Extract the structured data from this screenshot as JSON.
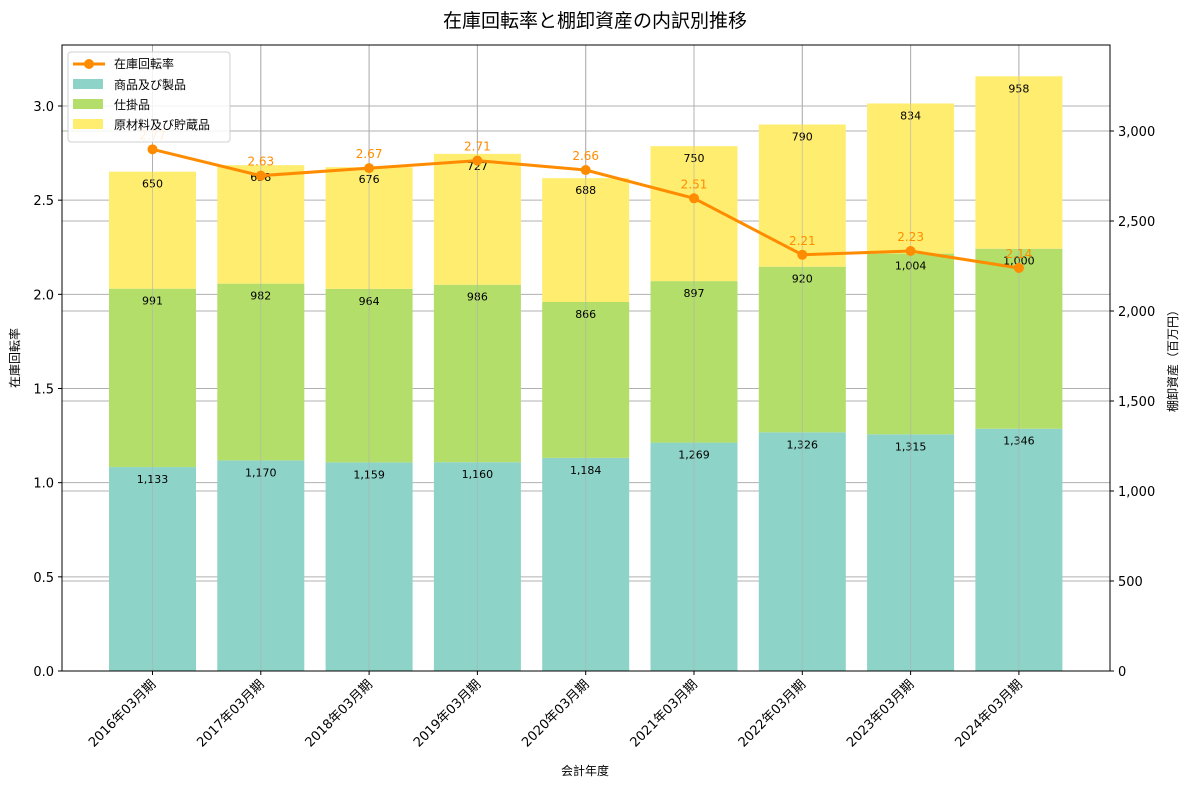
{
  "chart_data": {
    "type": "bar+line",
    "title": "在庫回転率と棚卸資産の内訳別推移",
    "xlabel": "会計年度",
    "ylabel_left": "在庫回転率",
    "ylabel_right": "棚卸資産（百万円）",
    "ylim_left": [
      0,
      3.3
    ],
    "ylim_right": [
      0,
      3450
    ],
    "yticks_left": [
      "0.0",
      "0.5",
      "1.0",
      "1.5",
      "2.0",
      "2.5",
      "3.0"
    ],
    "yticks_right": [
      "0",
      "500",
      "1,000",
      "1,500",
      "2,000",
      "2,500",
      "3,000"
    ],
    "categories": [
      "2016年03月期",
      "2017年03月期",
      "2018年03月期",
      "2019年03月期",
      "2020年03月期",
      "2021年03月期",
      "2022年03月期",
      "2023年03月期",
      "2024年03月期"
    ],
    "bar_series": [
      {
        "name": "商品及び製品",
        "color": "#8dd3c7",
        "values": [
          1133,
          1170,
          1159,
          1160,
          1184,
          1269,
          1326,
          1315,
          1346
        ]
      },
      {
        "name": "仕掛品",
        "color": "#b3de69",
        "values": [
          991,
          982,
          964,
          986,
          866,
          897,
          920,
          1004,
          1000
        ]
      },
      {
        "name": "原材料及び貯蔵品",
        "color": "#ffed6f",
        "values": [
          650,
          658,
          676,
          727,
          688,
          750,
          790,
          834,
          958
        ]
      }
    ],
    "line_series": {
      "name": "在庫回転率",
      "color": "#ff8c00",
      "values": [
        2.77,
        2.63,
        2.67,
        2.71,
        2.66,
        2.51,
        2.21,
        2.23,
        2.14
      ]
    },
    "grid": true,
    "legend_position": "upper left"
  }
}
